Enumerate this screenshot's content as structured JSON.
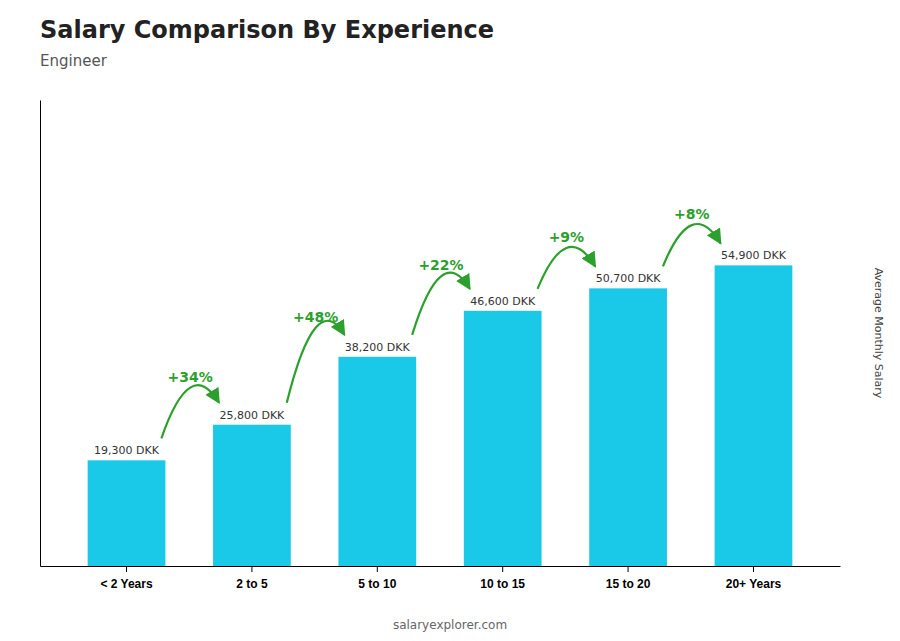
{
  "chart_data": {
    "type": "bar",
    "title": "Salary Comparison By Experience",
    "subtitle": "Engineer",
    "ylabel": "Average Monthly Salary",
    "footer": "salaryexplorer.com",
    "categories": [
      "< 2 Years",
      "2 to 5",
      "5 to 10",
      "10 to 15",
      "15 to 20",
      "20+ Years"
    ],
    "values": [
      19300,
      25800,
      38200,
      46600,
      50700,
      54900
    ],
    "value_labels": [
      "19,300 DKK",
      "25,800 DKK",
      "38,200 DKK",
      "46,600 DKK",
      "50,700 DKK",
      "54,900 DKK"
    ],
    "data_labels": true,
    "color": "#1ac8e8",
    "ylim": [
      0,
      85095
    ],
    "tick_labels": "x",
    "grid": false,
    "annotations": [
      {
        "text": "+34%",
        "from": "< 2 Years",
        "to": "2 to 5"
      },
      {
        "text": "+48%",
        "from": "2 to 5",
        "to": "5 to 10"
      },
      {
        "text": "+22%",
        "from": "5 to 10",
        "to": "10 to 15"
      },
      {
        "text": "+9%",
        "from": "10 to 15",
        "to": "15 to 20"
      },
      {
        "text": "+8%",
        "from": "15 to 20",
        "to": "20+ Years"
      }
    ]
  }
}
